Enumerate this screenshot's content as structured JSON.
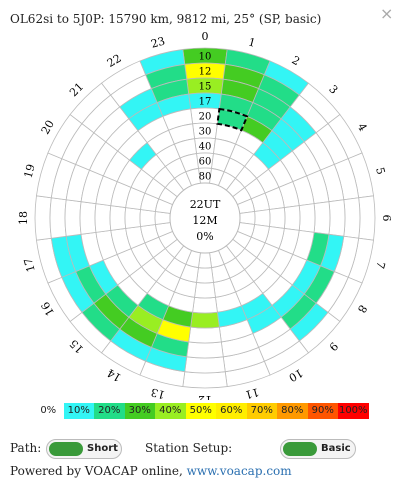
{
  "header": {
    "title": "OL62si to 5J0P: 15790 km, 9812 mi, 25°  (SP, basic)",
    "close": "×"
  },
  "polar": {
    "hours": [
      "0",
      "1",
      "2",
      "3",
      "4",
      "5",
      "6",
      "7",
      "8",
      "9",
      "10",
      "11",
      "12",
      "13",
      "14",
      "15",
      "16",
      "17",
      "18",
      "19",
      "20",
      "21",
      "22",
      "23"
    ],
    "bands": [
      "10",
      "12",
      "15",
      "17",
      "20",
      "30",
      "40",
      "60",
      "80"
    ],
    "center": [
      "22UT",
      "12M",
      "0%"
    ],
    "reliability": [
      [
        30,
        50,
        40,
        10,
        0,
        0,
        0,
        0,
        0
      ],
      [
        20,
        30,
        30,
        20,
        20,
        0,
        0,
        0,
        0
      ],
      [
        10,
        20,
        20,
        20,
        30,
        0,
        0,
        0,
        0
      ],
      [
        0,
        0,
        10,
        10,
        10,
        10,
        0,
        0,
        0
      ],
      [
        0,
        0,
        0,
        0,
        0,
        0,
        0,
        0,
        0
      ],
      [
        0,
        0,
        0,
        0,
        0,
        0,
        0,
        0,
        0
      ],
      [
        0,
        0,
        0,
        0,
        0,
        0,
        0,
        0,
        0
      ],
      [
        0,
        0,
        10,
        20,
        0,
        0,
        0,
        0,
        0
      ],
      [
        0,
        0,
        20,
        10,
        0,
        0,
        0,
        0,
        0
      ],
      [
        0,
        10,
        20,
        10,
        0,
        0,
        0,
        0,
        0
      ],
      [
        0,
        0,
        0,
        10,
        10,
        0,
        0,
        0,
        0
      ],
      [
        0,
        0,
        0,
        0,
        10,
        0,
        0,
        0,
        0
      ],
      [
        0,
        0,
        0,
        0,
        40,
        0,
        0,
        0,
        0
      ],
      [
        0,
        10,
        20,
        50,
        30,
        0,
        0,
        0,
        0
      ],
      [
        0,
        10,
        30,
        40,
        20,
        0,
        0,
        0,
        0
      ],
      [
        0,
        20,
        30,
        20,
        0,
        0,
        0,
        0,
        0
      ],
      [
        0,
        10,
        20,
        10,
        0,
        0,
        0,
        0,
        0
      ],
      [
        0,
        10,
        10,
        0,
        0,
        0,
        0,
        0,
        0
      ],
      [
        0,
        0,
        0,
        0,
        0,
        0,
        0,
        0,
        0
      ],
      [
        0,
        0,
        0,
        0,
        0,
        0,
        0,
        0,
        0
      ],
      [
        0,
        0,
        0,
        0,
        0,
        0,
        0,
        0,
        0
      ],
      [
        0,
        0,
        0,
        0,
        0,
        10,
        0,
        0,
        0
      ],
      [
        0,
        0,
        10,
        10,
        0,
        0,
        0,
        0,
        0
      ],
      [
        10,
        20,
        20,
        10,
        0,
        0,
        0,
        0,
        0
      ]
    ]
  },
  "legend": [
    {
      "label": "0%",
      "color": "#ffffff"
    },
    {
      "label": "10%",
      "color": "#33f5f5"
    },
    {
      "label": "20%",
      "color": "#22dd88"
    },
    {
      "label": "30%",
      "color": "#44cc22"
    },
    {
      "label": "40%",
      "color": "#99ee22"
    },
    {
      "label": "50%",
      "color": "#ffff00"
    },
    {
      "label": "60%",
      "color": "#ffee00"
    },
    {
      "label": "70%",
      "color": "#ffcc00"
    },
    {
      "label": "80%",
      "color": "#ff9900"
    },
    {
      "label": "90%",
      "color": "#ff5500"
    },
    {
      "label": "100%",
      "color": "#ff0000"
    }
  ],
  "controls": {
    "path_label": "Path:",
    "path_value": "Short",
    "setup_label": "Station Setup:",
    "setup_value": "Basic"
  },
  "footer": {
    "text": "Powered by VOACAP online, ",
    "link": "www.voacap.com"
  }
}
